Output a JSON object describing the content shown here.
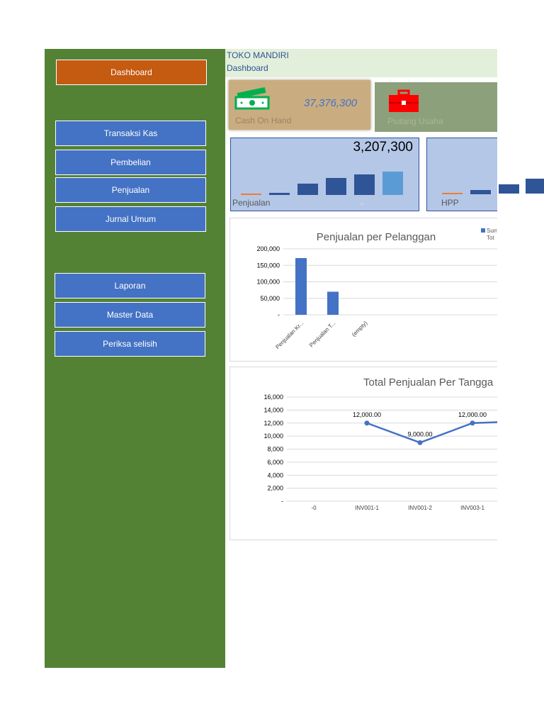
{
  "nav": {
    "dashboard": "Dashboard",
    "transaksi_kas": "Transaksi Kas",
    "pembelian": "Pembelian",
    "penjualan": "Penjualan",
    "jurnal_umum": "Jurnal Umum",
    "laporan": "Laporan",
    "master_data": "Master Data",
    "periksa_selisih": "Periksa selisih"
  },
  "header": {
    "company": "TOKO MANDIRI",
    "page": "Dashboard"
  },
  "cards": {
    "cash": {
      "value": "37,376,300",
      "label": "Cash On Hand",
      "icon": "cash-icon"
    },
    "piutang": {
      "label": "Piutang Usaha",
      "icon": "briefcase-icon"
    }
  },
  "kpi": {
    "penjualan": {
      "value": "3,207,300",
      "label": "Penjualan",
      "mark": "="
    },
    "hpp": {
      "label": "HPP"
    }
  },
  "colors": {
    "sidebar": "#548235",
    "nav_button": "#4472c4",
    "nav_active": "#c55a11",
    "bar": "#4472c4",
    "line": "#4472c4"
  },
  "chart_data": [
    {
      "type": "bar",
      "title": "Penjualan per Pelanggan",
      "categories": [
        "Penjualan Kr...",
        "Penjualan T...",
        "(empty)"
      ],
      "series": [
        {
          "values": [
            172000,
            70000,
            0
          ]
        }
      ],
      "legend": [
        "Sum",
        "Tot"
      ],
      "legend_position": "top-right",
      "ylim": [
        0,
        200000
      ],
      "yticks": [
        "200,000",
        "150,000",
        "100,000",
        "50,000",
        "-"
      ],
      "grid": true
    },
    {
      "type": "line",
      "title": "Total Penjualan Per Tangga",
      "categories": [
        "-0",
        "INV001-1",
        "INV001-2",
        "INV003-1"
      ],
      "values": [
        null,
        12000,
        9000,
        12000
      ],
      "data_labels": [
        "",
        "12,000.00",
        "9,000.00",
        "12,000.00"
      ],
      "ylim": [
        0,
        16000
      ],
      "yticks": [
        "16,000",
        "14,000",
        "12,000",
        "10,000",
        "8,000",
        "6,000",
        "4,000",
        "2,000",
        "-"
      ],
      "grid": true
    }
  ]
}
